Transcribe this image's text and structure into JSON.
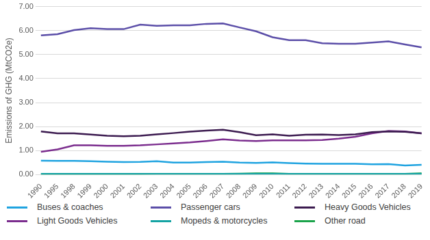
{
  "chart_data": {
    "type": "line",
    "y_label": "Emissions of GHG (MtCO2e)",
    "categories": [
      "1990",
      "1995",
      "1998",
      "1999",
      "2000",
      "2001",
      "2002",
      "2003",
      "2004",
      "2005",
      "2006",
      "2007",
      "2008",
      "2009",
      "2010",
      "2011",
      "2012",
      "2013",
      "2014",
      "2015",
      "2016",
      "2017",
      "2018",
      "2019"
    ],
    "series": [
      {
        "name": "Buses & coaches",
        "color": "#1fa3e0",
        "values": [
          0.58,
          0.57,
          0.57,
          0.56,
          0.54,
          0.52,
          0.53,
          0.56,
          0.5,
          0.5,
          0.52,
          0.54,
          0.5,
          0.49,
          0.51,
          0.48,
          0.46,
          0.45,
          0.45,
          0.45,
          0.43,
          0.44,
          0.38,
          0.41
        ]
      },
      {
        "name": "Passenger cars",
        "color": "#5b4ea8",
        "values": [
          5.8,
          5.85,
          6.02,
          6.1,
          6.06,
          6.06,
          6.25,
          6.2,
          6.22,
          6.22,
          6.28,
          6.3,
          6.13,
          5.97,
          5.72,
          5.6,
          5.6,
          5.47,
          5.45,
          5.45,
          5.5,
          5.55,
          5.42,
          5.3
        ]
      },
      {
        "name": "Heavy Goods Vehicles",
        "color": "#3b1a4f",
        "values": [
          1.8,
          1.72,
          1.72,
          1.67,
          1.62,
          1.6,
          1.62,
          1.68,
          1.73,
          1.79,
          1.83,
          1.87,
          1.77,
          1.64,
          1.68,
          1.62,
          1.66,
          1.67,
          1.65,
          1.68,
          1.77,
          1.8,
          1.78,
          1.72
        ]
      },
      {
        "name": "Light Goods Vehicles",
        "color": "#7b2d8e",
        "values": [
          0.95,
          1.05,
          1.22,
          1.22,
          1.2,
          1.2,
          1.22,
          1.26,
          1.3,
          1.34,
          1.4,
          1.47,
          1.42,
          1.4,
          1.43,
          1.43,
          1.43,
          1.44,
          1.5,
          1.58,
          1.72,
          1.82,
          1.8,
          1.72
        ]
      },
      {
        "name": "Mopeds & motorcycles",
        "color": "#14a3a3",
        "values": [
          0.03,
          0.03,
          0.03,
          0.03,
          0.03,
          0.03,
          0.03,
          0.03,
          0.03,
          0.03,
          0.03,
          0.03,
          0.03,
          0.03,
          0.03,
          0.03,
          0.03,
          0.03,
          0.03,
          0.03,
          0.03,
          0.03,
          0.03,
          0.03
        ]
      },
      {
        "name": "Other road",
        "color": "#1aa34a",
        "values": [
          0.01,
          0.01,
          0.01,
          0.01,
          0.01,
          0.01,
          0.02,
          0.03,
          0.03,
          0.03,
          0.03,
          0.03,
          0.04,
          0.05,
          0.05,
          0.03,
          0.03,
          0.03,
          0.03,
          0.03,
          0.03,
          0.03,
          0.03,
          0.05
        ]
      }
    ],
    "ylim": [
      0,
      7
    ],
    "yticks": [
      {
        "value": 0,
        "label": "0.00"
      },
      {
        "value": 1,
        "label": "1.00"
      },
      {
        "value": 2,
        "label": "2.00"
      },
      {
        "value": 3,
        "label": "3.00"
      },
      {
        "value": 4,
        "label": "4.00"
      },
      {
        "value": 5,
        "label": "5.00"
      },
      {
        "value": 6,
        "label": "6.00"
      },
      {
        "value": 7,
        "label": "7.00"
      }
    ],
    "grid": true,
    "legend": "bottom"
  }
}
